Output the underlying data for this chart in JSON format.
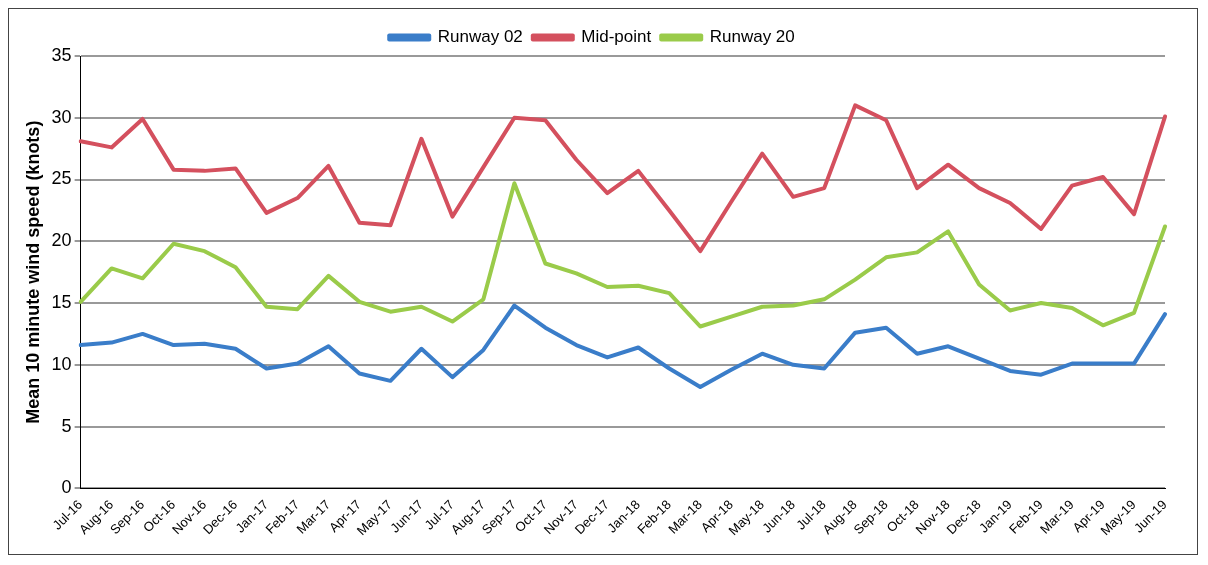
{
  "chart_data": {
    "type": "line",
    "ylabel": "Mean 10 minute wind speed (knots)",
    "categories": [
      "Jul-16",
      "Aug-16",
      "Sep-16",
      "Oct-16",
      "Nov-16",
      "Dec-16",
      "Jan-17",
      "Feb-17",
      "Mar-17",
      "Apr-17",
      "May-17",
      "Jun-17",
      "Jul-17",
      "Aug-17",
      "Sep-17",
      "Oct-17",
      "Nov-17",
      "Dec-17",
      "Jan-18",
      "Feb-18",
      "Mar-18",
      "Apr-18",
      "May-18",
      "Jun-18",
      "Jul-18",
      "Aug-18",
      "Sep-18",
      "Oct-18",
      "Nov-18",
      "Dec-18",
      "Jan-19",
      "Feb-19",
      "Mar-19",
      "Apr-19",
      "May-19",
      "Jun-19"
    ],
    "series": [
      {
        "name": "Runway 02",
        "color": "#3a7dc9",
        "values": [
          11.6,
          11.8,
          12.5,
          11.6,
          11.7,
          11.3,
          9.7,
          10.1,
          11.5,
          9.3,
          8.7,
          11.3,
          9.0,
          11.2,
          14.8,
          13.0,
          11.6,
          10.6,
          11.4,
          9.7,
          8.2,
          9.6,
          10.9,
          10.0,
          9.7,
          12.6,
          13.0,
          10.9,
          11.5,
          10.5,
          9.5,
          9.2,
          10.1,
          10.1,
          10.1,
          14.1
        ]
      },
      {
        "name": "Mid-point",
        "color": "#d4505e",
        "values": [
          28.1,
          27.6,
          29.9,
          25.8,
          25.7,
          25.9,
          22.3,
          23.5,
          26.1,
          21.5,
          21.3,
          28.3,
          22.0,
          26.0,
          30.0,
          29.8,
          26.6,
          23.9,
          25.7,
          22.5,
          19.2,
          23.2,
          27.1,
          23.6,
          24.3,
          31.0,
          29.8,
          24.3,
          26.2,
          24.3,
          23.1,
          21.0,
          24.5,
          25.2,
          22.2,
          30.1
        ]
      },
      {
        "name": "Runway 20",
        "color": "#9acb4a",
        "values": [
          15.1,
          17.8,
          17.0,
          19.8,
          19.2,
          17.9,
          14.7,
          14.5,
          17.2,
          15.1,
          14.3,
          14.7,
          13.5,
          15.3,
          24.7,
          18.2,
          17.4,
          16.3,
          16.4,
          15.8,
          13.1,
          13.9,
          14.7,
          14.8,
          15.3,
          16.9,
          18.7,
          19.1,
          20.8,
          16.5,
          14.4,
          15.0,
          14.6,
          13.2,
          14.2,
          21.2
        ]
      }
    ],
    "ylim": [
      0,
      35
    ],
    "yticks": [
      0,
      5,
      10,
      15,
      20,
      25,
      30,
      35
    ],
    "grid": "y",
    "legend": "top",
    "marker": "none",
    "line_style": "solid"
  }
}
